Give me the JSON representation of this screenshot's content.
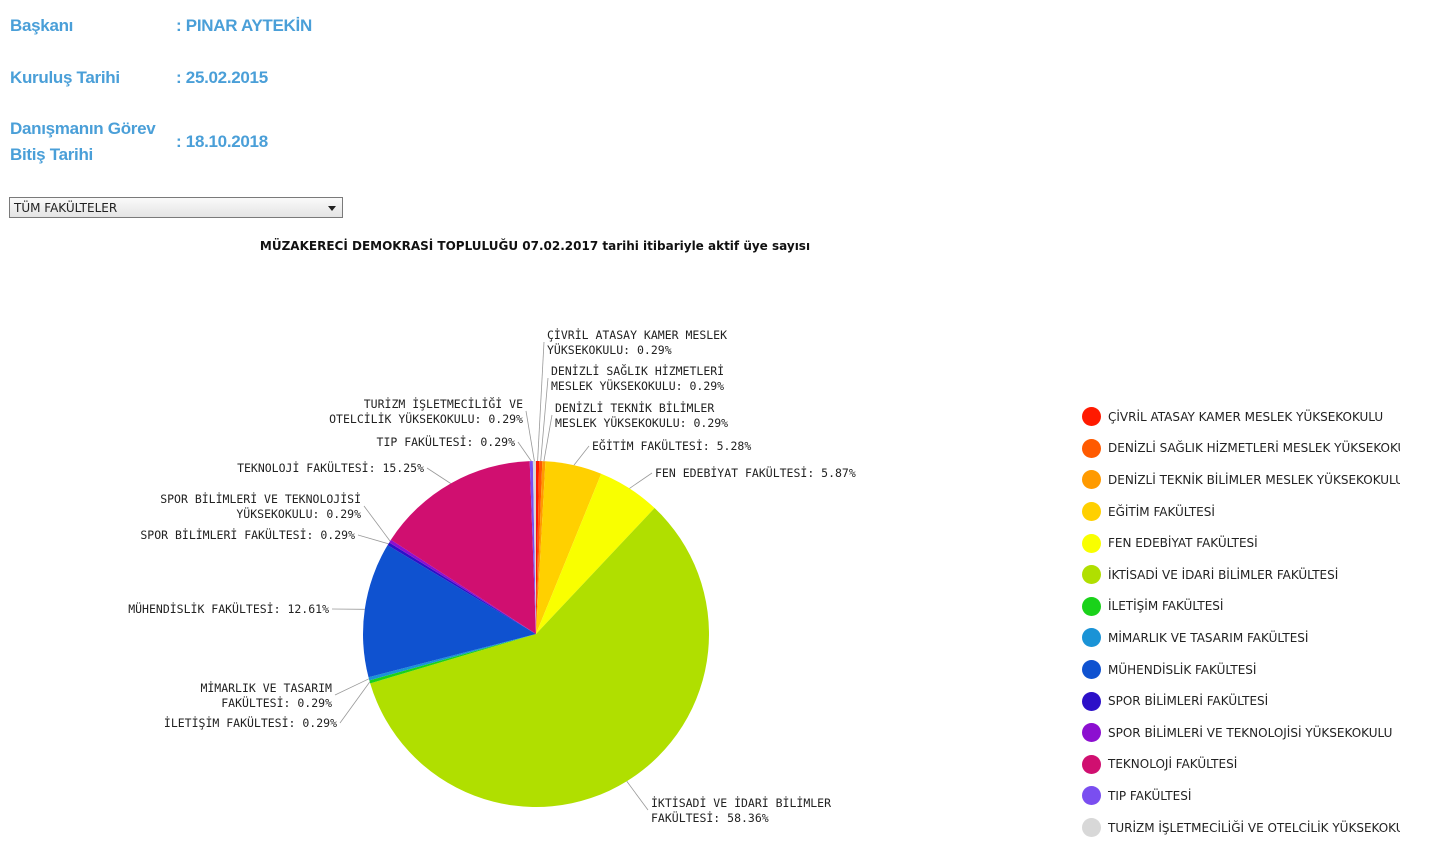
{
  "info": [
    {
      "label": "Başkanı",
      "value": ": PINAR AYTEKİN"
    },
    {
      "label": "Kuruluş Tarihi",
      "value": ": 25.02.2015"
    },
    {
      "label": "Danışmanın Görev Bitiş Tarihi",
      "value": ": 18.10.2018"
    }
  ],
  "filter": {
    "selected": "TÜM FAKÜLTELER"
  },
  "chart_data": {
    "type": "pie",
    "title": "MÜZAKERECİ DEMOKRASİ TOPLULUĞU 07.02.2017 tarihi itibariyle aktif üye sayısı",
    "legend_position": "right",
    "slices": [
      {
        "name": "ÇİVRİL ATASAY KAMER MESLEK YÜKSEKOKULU",
        "value": 0.29,
        "color": "#ff1a00",
        "label": "ÇİVRİL ATASAY KAMER MESLEK YÜKSEKOKULU: 0.29%"
      },
      {
        "name": "DENİZLİ SAĞLIK HİZMETLERİ MESLEK YÜKSEKOKULU",
        "value": 0.29,
        "color": "#ff5a00",
        "label": "DENİZLİ SAĞLIK HİZMETLERİ MESLEK YÜKSEKOKULU: 0.29%"
      },
      {
        "name": "DENİZLİ TEKNİK BİLİMLER MESLEK YÜKSEKOKULU",
        "value": 0.29,
        "color": "#ff9a00",
        "label": "DENİZLİ TEKNİK BİLİMLER MESLEK YÜKSEKOKULU: 0.29%"
      },
      {
        "name": "EĞİTİM FAKÜLTESİ",
        "value": 5.28,
        "color": "#ffd000",
        "label": "EĞİTİM FAKÜLTESİ: 5.28%"
      },
      {
        "name": "FEN EDEBİYAT FAKÜLTESİ",
        "value": 5.87,
        "color": "#f9ff00",
        "label": "FEN EDEBİYAT FAKÜLTESİ: 5.87%"
      },
      {
        "name": "İKTİSADİ VE İDARİ BİLİMLER FAKÜLTESİ",
        "value": 58.36,
        "color": "#b0df00",
        "label": "İKTİSADİ VE İDARİ BİLİMLER FAKÜLTESİ: 58.36%"
      },
      {
        "name": "İLETİŞİM FAKÜLTESİ",
        "value": 0.29,
        "color": "#1ad21a",
        "label": "İLETİŞİM FAKÜLTESİ: 0.29%"
      },
      {
        "name": "MİMARLIK VE TASARIM FAKÜLTESİ",
        "value": 0.29,
        "color": "#1a93d6",
        "label": "MİMARLIK VE TASARIM FAKÜLTESİ: 0.29%"
      },
      {
        "name": "MÜHENDİSLİK FAKÜLTESİ",
        "value": 12.61,
        "color": "#0f52d0",
        "label": "MÜHENDİSLİK FAKÜLTESİ: 12.61%"
      },
      {
        "name": "SPOR BİLİMLERİ FAKÜLTESİ",
        "value": 0.29,
        "color": "#2c10c8",
        "label": "SPOR BİLİMLERİ FAKÜLTESİ: 0.29%"
      },
      {
        "name": "SPOR BİLİMLERİ VE TEKNOLOJİSİ YÜKSEKOKULU",
        "value": 0.29,
        "color": "#8c0fd0",
        "label": "SPOR BİLİMLERİ VE TEKNOLOJİSİ YÜKSEKOKULU: 0.29%"
      },
      {
        "name": "TEKNOLOJİ FAKÜLTESİ",
        "value": 15.25,
        "color": "#d00f70",
        "label": "TEKNOLOJİ FAKÜLTESİ: 15.25%"
      },
      {
        "name": "TIP FAKÜLTESİ",
        "value": 0.29,
        "color": "#7a4ef0",
        "label": "TIP FAKÜLTESİ: 0.29%"
      },
      {
        "name": "TURİZM İŞLETMECİLİĞİ VE OTELCİLİK YÜKSEKOKULU",
        "value": 0.29,
        "color": "#d8d8d8",
        "label": "TURİZM İŞLETMECİLİĞİ VE OTELCİLİK YÜKSEKOKULU: 0.29%"
      }
    ],
    "legend_labels": [
      "ÇİVRİL ATASAY KAMER MESLEK YÜKSEKOKULU",
      "DENİZLİ SAĞLIK HİZMETLERİ MESLEK YÜKSEKOKULU",
      "DENİZLİ TEKNİK BİLİMLER MESLEK YÜKSEKOKULU",
      "EĞİTİM FAKÜLTESİ",
      "FEN EDEBİYAT FAKÜLTESİ",
      "İKTİSADİ VE İDARİ BİLİMLER FAKÜLTESİ",
      "İLETİŞİM FAKÜLTESİ",
      "MİMARLIK VE TASARIM FAKÜLTESİ",
      "MÜHENDİSLİK FAKÜLTESİ",
      "SPOR BİLİMLERİ FAKÜLTESİ",
      "SPOR BİLİMLERİ VE TEKNOLOJİSİ YÜKSEKOKULU",
      "TEKNOLOJİ FAKÜLTESİ",
      "TIP FAKÜLTESİ",
      "TURİZM İŞLETMECİLİĞİ VE OTELCİLİK YÜKSEKOKULU"
    ]
  }
}
